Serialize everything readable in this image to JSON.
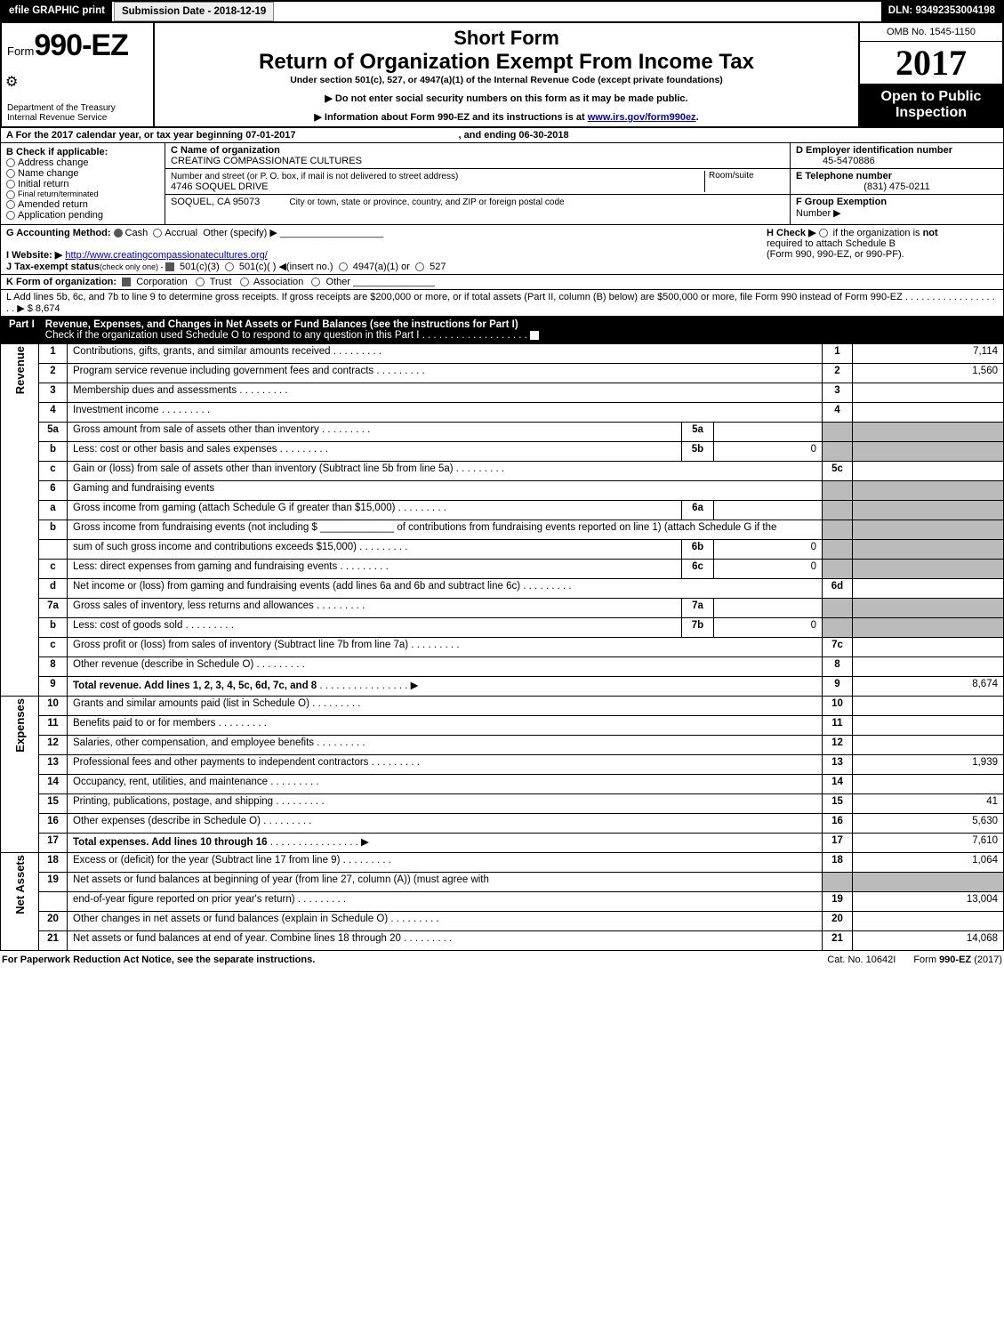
{
  "topbar": {
    "efile": "efile GRAPHIC print",
    "submission": "Submission Date - 2018-12-19",
    "dln": "DLN: 93492353004198"
  },
  "header": {
    "form_label": "Form",
    "form_number": "990-EZ",
    "dept1": "Department of the Treasury",
    "dept2": "Internal Revenue Service",
    "title1": "Short Form",
    "title2": "Return of Organization Exempt From Income Tax",
    "subtitle": "Under section 501(c), 527, or 4947(a)(1) of the Internal Revenue Code (except private foundations)",
    "arrow1": "▶ Do not enter social security numbers on this form as it may be made public.",
    "arrow2_pre": "▶ Information about Form 990-EZ and its instructions is at ",
    "arrow2_link": "www.irs.gov/form990ez",
    "arrow2_post": ".",
    "omb": "OMB No. 1545-1150",
    "year": "2017",
    "open1": "Open to Public",
    "open2": "Inspection"
  },
  "sectionA": {
    "line_a": "A  For the 2017 calendar year, or tax year beginning 07-01-2017",
    "line_a_end": ", and ending 06-30-2018",
    "b_label": "B  Check if applicable:",
    "b_items": [
      "Address change",
      "Name change",
      "Initial return",
      "Final return/terminated",
      "Amended return",
      "Application pending"
    ],
    "c_label": "C Name of organization",
    "c_value": "CREATING COMPASSIONATE CULTURES",
    "addr_label": "Number and street (or P. O. box, if mail is not delivered to street address)",
    "addr_value": "4746 SOQUEL DRIVE",
    "room_label": "Room/suite",
    "city_value": "SOQUEL, CA  95073",
    "city_label2": "City or town, state or province, country, and ZIP or foreign postal code",
    "d_label": "D Employer identification number",
    "d_value": "45-5470886",
    "e_label": "E Telephone number",
    "e_value": "(831) 475-0211",
    "f_label": "F Group Exemption",
    "f_label2": "Number   ▶",
    "g_label": "G Accounting Method:",
    "g_opts": [
      "Cash",
      "Accrual",
      "Other (specify) ▶"
    ],
    "h_label": "H   Check ▶",
    "h_text1": "if the organization is ",
    "h_not": "not",
    "h_text2": " required to attach Schedule B",
    "h_text3": "(Form 990, 990-EZ, or 990-PF).",
    "i_label": "I Website: ▶",
    "i_value": "http://www.creatingcompassionatecultures.org/",
    "j_label": "J Tax-exempt status",
    "j_sub": "(check only one) - ",
    "j_opts": [
      "501(c)(3)",
      "501(c)(  ) ◀(insert no.)",
      "4947(a)(1) or",
      "527"
    ],
    "k_label": "K Form of organization:",
    "k_opts": [
      "Corporation",
      "Trust",
      "Association",
      "Other"
    ],
    "l_text": "L Add lines 5b, 6c, and 7b to line 9 to determine gross receipts. If gross receipts are $200,000 or more, or if total assets (Part II, column (B) below) are $500,000 or more, file Form 990 instead of Form 990-EZ",
    "l_amount": "▶ $ 8,674"
  },
  "part1": {
    "label": "Part I",
    "title": "Revenue, Expenses, and Changes in Net Assets or Fund Balances (see the instructions for Part I)",
    "check_line": "Check if the organization used Schedule O to respond to any question in this Part I",
    "sides": {
      "rev": "Revenue",
      "exp": "Expenses",
      "net": "Net Assets"
    },
    "rows": [
      {
        "ln": "1",
        "desc": "Contributions, gifts, grants, and similar amounts received",
        "num": "1",
        "amt": "7,114"
      },
      {
        "ln": "2",
        "desc": "Program service revenue including government fees and contracts",
        "num": "2",
        "amt": "1,560"
      },
      {
        "ln": "3",
        "desc": "Membership dues and assessments",
        "num": "3",
        "amt": ""
      },
      {
        "ln": "4",
        "desc": "Investment income",
        "num": "4",
        "amt": ""
      },
      {
        "ln": "5a",
        "desc": "Gross amount from sale of assets other than inventory",
        "mini": "5a",
        "minamt": ""
      },
      {
        "ln": "b",
        "desc": "Less: cost or other basis and sales expenses",
        "mini": "5b",
        "minamt": "0"
      },
      {
        "ln": "c",
        "desc": "Gain or (loss) from sale of assets other than inventory (Subtract line 5b from line 5a)",
        "num": "5c",
        "amt": ""
      },
      {
        "ln": "6",
        "desc": "Gaming and fundraising events"
      },
      {
        "ln": "a",
        "desc": "Gross income from gaming (attach Schedule G if greater than $15,000)",
        "mini": "6a",
        "minamt": ""
      },
      {
        "ln": "b",
        "desc": "Gross income from fundraising events (not including $ _____________ of contributions from fundraising events reported on line 1) (attach Schedule G if the"
      },
      {
        "ln": "",
        "desc": "sum of such gross income and contributions exceeds $15,000)",
        "mini": "6b",
        "minamt": "0"
      },
      {
        "ln": "c",
        "desc": "Less: direct expenses from gaming and fundraising events",
        "mini": "6c",
        "minamt": "0"
      },
      {
        "ln": "d",
        "desc": "Net income or (loss) from gaming and fundraising events (add lines 6a and 6b and subtract line 6c)",
        "num": "6d",
        "amt": ""
      },
      {
        "ln": "7a",
        "desc": "Gross sales of inventory, less returns and allowances",
        "mini": "7a",
        "minamt": ""
      },
      {
        "ln": "b",
        "desc": "Less: cost of goods sold",
        "mini": "7b",
        "minamt": "0"
      },
      {
        "ln": "c",
        "desc": "Gross profit or (loss) from sales of inventory (Subtract line 7b from line 7a)",
        "num": "7c",
        "amt": ""
      },
      {
        "ln": "8",
        "desc": "Other revenue (describe in Schedule O)",
        "num": "8",
        "amt": ""
      },
      {
        "ln": "9",
        "desc": "Total revenue. Add lines 1, 2, 3, 4, 5c, 6d, 7c, and 8",
        "num": "9",
        "amt": "8,674",
        "bold": true,
        "arrow": true
      },
      {
        "ln": "10",
        "desc": "Grants and similar amounts paid (list in Schedule O)",
        "num": "10",
        "amt": ""
      },
      {
        "ln": "11",
        "desc": "Benefits paid to or for members",
        "num": "11",
        "amt": ""
      },
      {
        "ln": "12",
        "desc": "Salaries, other compensation, and employee benefits",
        "num": "12",
        "amt": ""
      },
      {
        "ln": "13",
        "desc": "Professional fees and other payments to independent contractors",
        "num": "13",
        "amt": "1,939"
      },
      {
        "ln": "14",
        "desc": "Occupancy, rent, utilities, and maintenance",
        "num": "14",
        "amt": ""
      },
      {
        "ln": "15",
        "desc": "Printing, publications, postage, and shipping",
        "num": "15",
        "amt": "41"
      },
      {
        "ln": "16",
        "desc": "Other expenses (describe in Schedule O)",
        "num": "16",
        "amt": "5,630"
      },
      {
        "ln": "17",
        "desc": "Total expenses. Add lines 10 through 16",
        "num": "17",
        "amt": "7,610",
        "bold": true,
        "arrow": true
      },
      {
        "ln": "18",
        "desc": "Excess or (deficit) for the year (Subtract line 17 from line 9)",
        "num": "18",
        "amt": "1,064"
      },
      {
        "ln": "19",
        "desc": "Net assets or fund balances at beginning of year (from line 27, column (A)) (must agree with"
      },
      {
        "ln": "",
        "desc": "end-of-year figure reported on prior year's return)",
        "num": "19",
        "amt": "13,004"
      },
      {
        "ln": "20",
        "desc": "Other changes in net assets or fund balances (explain in Schedule O)",
        "num": "20",
        "amt": ""
      },
      {
        "ln": "21",
        "desc": "Net assets or fund balances at end of year. Combine lines 18 through 20",
        "num": "21",
        "amt": "14,068"
      }
    ]
  },
  "footer": {
    "left": "For Paperwork Reduction Act Notice, see the separate instructions.",
    "mid": "Cat. No. 10642I",
    "right_pre": "Form ",
    "right_bold": "990-EZ",
    "right_post": " (2017)"
  }
}
